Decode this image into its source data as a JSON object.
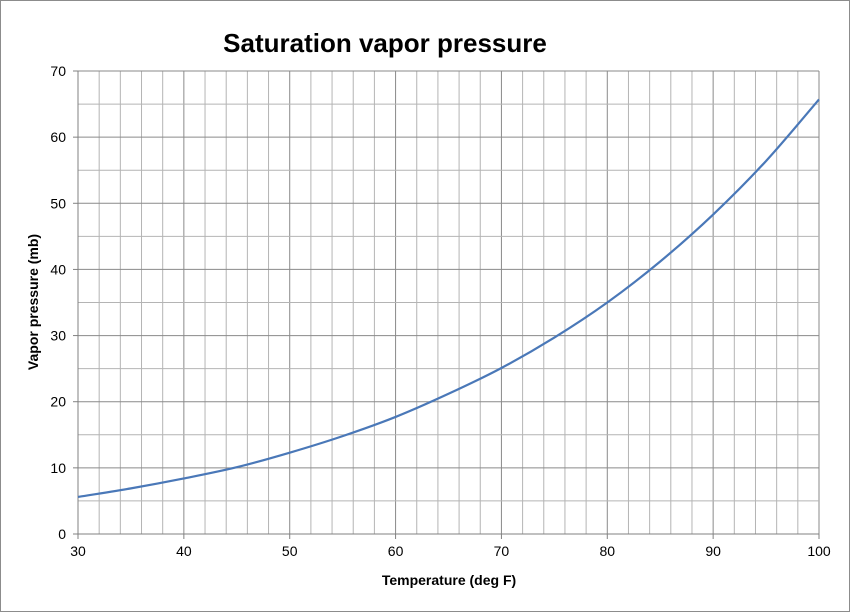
{
  "chart_data": {
    "type": "line",
    "title": "Saturation vapor pressure",
    "xlabel": "Temperature (deg F)",
    "ylabel": "Vapor pressure (mb)",
    "xlim": [
      30,
      100
    ],
    "ylim": [
      0,
      70
    ],
    "x_ticks": [
      30,
      40,
      50,
      60,
      70,
      80,
      90,
      100
    ],
    "y_ticks": [
      0,
      10,
      20,
      30,
      40,
      50,
      60,
      70
    ],
    "x_minor_step": 2,
    "y_minor_step": 5,
    "grid": true,
    "legend": "none",
    "series_color": "#4a78b8",
    "series": [
      {
        "x": [
          30,
          35,
          40,
          45,
          50,
          55,
          60,
          65,
          70,
          75,
          80,
          85,
          90,
          95,
          100
        ],
        "y": [
          5.6,
          6.9,
          8.4,
          10.1,
          12.3,
          14.8,
          17.7,
          21.2,
          25.1,
          29.7,
          35.0,
          41.2,
          48.3,
          56.4,
          65.7
        ]
      }
    ]
  }
}
